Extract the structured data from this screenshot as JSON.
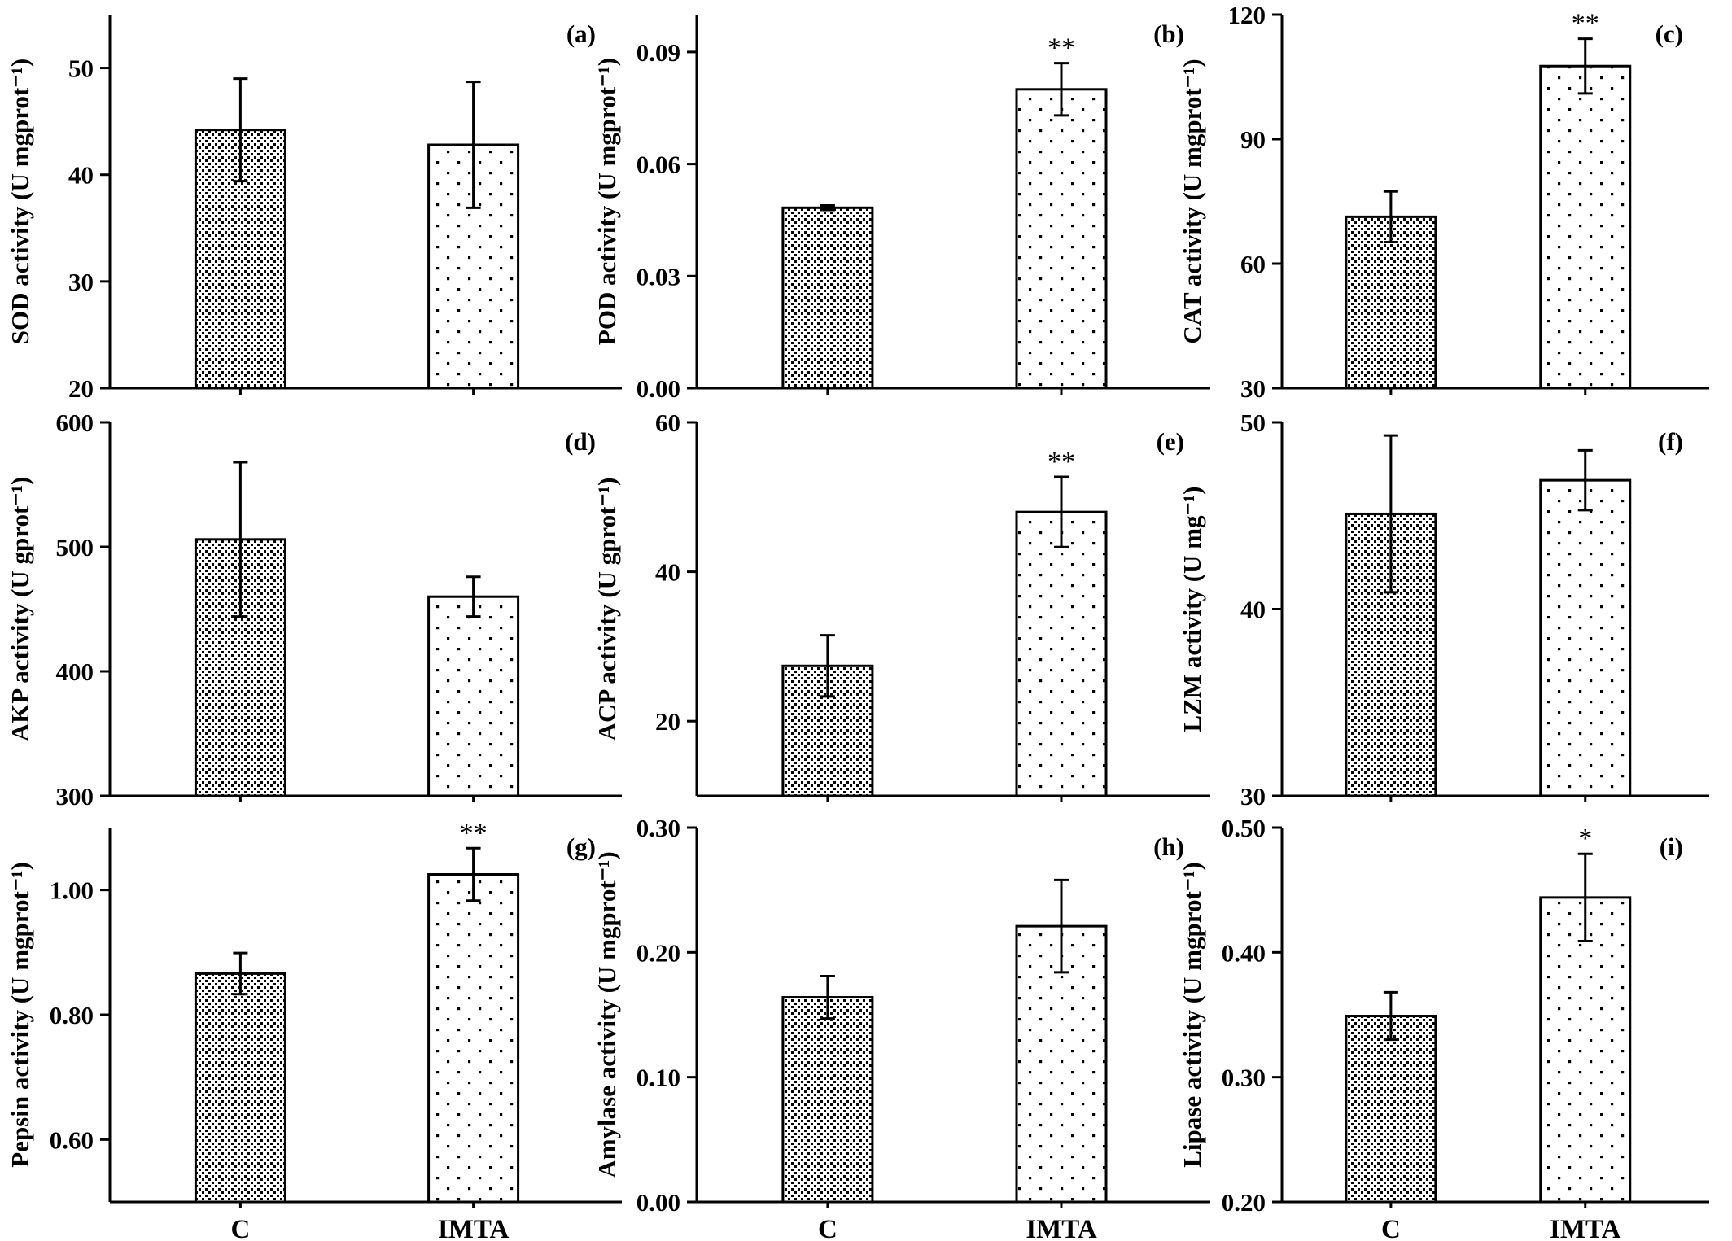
{
  "x_categories": [
    "C",
    "IMTA"
  ],
  "colors": {
    "axis": "#000000",
    "bar_fill": "#ffffff",
    "dots": "#000000"
  },
  "patterns": {
    "C": "dense-dots",
    "IMTA": "sparse-dots"
  },
  "chart_data": [
    {
      "type": "bar",
      "panel_label": "(a)",
      "ylabel": "SOD activity (U mgprot⁻¹)",
      "ylim": [
        20,
        55
      ],
      "yticks": [
        "20",
        "30",
        "40",
        "50"
      ],
      "tick_values": [
        20,
        30,
        40,
        50
      ],
      "categories": [
        "C",
        "IMTA"
      ],
      "values": [
        44.2,
        42.8
      ],
      "errors": [
        4.8,
        5.9
      ],
      "significance": [
        "",
        ""
      ]
    },
    {
      "type": "bar",
      "panel_label": "(b)",
      "ylabel": "POD activity (U mgprot⁻¹)",
      "ylim": [
        0,
        0.1
      ],
      "yticks": [
        "0.00",
        "0.03",
        "0.06",
        "0.09"
      ],
      "tick_values": [
        0,
        0.03,
        0.06,
        0.09
      ],
      "categories": [
        "C",
        "IMTA"
      ],
      "values": [
        0.0483,
        0.08
      ],
      "errors": [
        0.0006,
        0.007
      ],
      "significance": [
        "",
        "**"
      ]
    },
    {
      "type": "bar",
      "panel_label": "(c)",
      "ylabel": "CAT activity (U mgprot⁻¹)",
      "ylim": [
        30,
        120
      ],
      "yticks": [
        "30",
        "60",
        "90",
        "120"
      ],
      "tick_values": [
        30,
        60,
        90,
        120
      ],
      "categories": [
        "C",
        "IMTA"
      ],
      "values": [
        71.3,
        107.6
      ],
      "errors": [
        6.1,
        6.6
      ],
      "significance": [
        "",
        "**"
      ]
    },
    {
      "type": "bar",
      "panel_label": "(d)",
      "ylabel": "AKP activity (U gprot⁻¹)",
      "ylim": [
        300,
        600
      ],
      "yticks": [
        "300",
        "400",
        "500",
        "600"
      ],
      "tick_values": [
        300,
        400,
        500,
        600
      ],
      "categories": [
        "C",
        "IMTA"
      ],
      "values": [
        506,
        460
      ],
      "errors": [
        62,
        16
      ],
      "significance": [
        "",
        ""
      ]
    },
    {
      "type": "bar",
      "panel_label": "(e)",
      "ylabel": "ACP activity (U gprot⁻¹)",
      "ylim": [
        10,
        60
      ],
      "yticks": [
        "20",
        "40",
        "60"
      ],
      "tick_values": [
        20,
        40,
        60
      ],
      "categories": [
        "C",
        "IMTA"
      ],
      "values": [
        27.4,
        48.0
      ],
      "errors": [
        4.1,
        4.7
      ],
      "significance": [
        "",
        "**"
      ]
    },
    {
      "type": "bar",
      "panel_label": "(f)",
      "ylabel": "LZM activity (U mg⁻¹)",
      "ylim": [
        30,
        50
      ],
      "yticks": [
        "30",
        "40",
        "50"
      ],
      "tick_values": [
        30,
        40,
        50
      ],
      "categories": [
        "C",
        "IMTA"
      ],
      "values": [
        45.1,
        46.9
      ],
      "errors": [
        4.2,
        1.6
      ],
      "significance": [
        "",
        ""
      ]
    },
    {
      "type": "bar",
      "panel_label": "(g)",
      "ylabel": "Pepsin activity (U mgprot⁻¹)",
      "ylim": [
        0.5,
        1.1
      ],
      "yticks": [
        "0.60",
        "0.80",
        "1.00"
      ],
      "tick_values": [
        0.6,
        0.8,
        1.0
      ],
      "categories": [
        "C",
        "IMTA"
      ],
      "values": [
        0.866,
        1.025
      ],
      "errors": [
        0.033,
        0.042
      ],
      "significance": [
        "",
        "**"
      ]
    },
    {
      "type": "bar",
      "panel_label": "(h)",
      "ylabel": "Amylase activity (U mgprot⁻¹)",
      "ylim": [
        0,
        0.3
      ],
      "yticks": [
        "0.00",
        "0.10",
        "0.20",
        "0.30"
      ],
      "tick_values": [
        0,
        0.1,
        0.2,
        0.3
      ],
      "categories": [
        "C",
        "IMTA"
      ],
      "values": [
        0.164,
        0.221
      ],
      "errors": [
        0.017,
        0.037
      ],
      "significance": [
        "",
        ""
      ]
    },
    {
      "type": "bar",
      "panel_label": "(i)",
      "ylabel": "Lipase activity (U mgprot⁻¹)",
      "ylim": [
        0.2,
        0.5
      ],
      "yticks": [
        "0.20",
        "0.30",
        "0.40",
        "0.50"
      ],
      "tick_values": [
        0.2,
        0.3,
        0.4,
        0.5
      ],
      "categories": [
        "C",
        "IMTA"
      ],
      "values": [
        0.349,
        0.444
      ],
      "errors": [
        0.019,
        0.035
      ],
      "significance": [
        "",
        "*"
      ]
    }
  ]
}
